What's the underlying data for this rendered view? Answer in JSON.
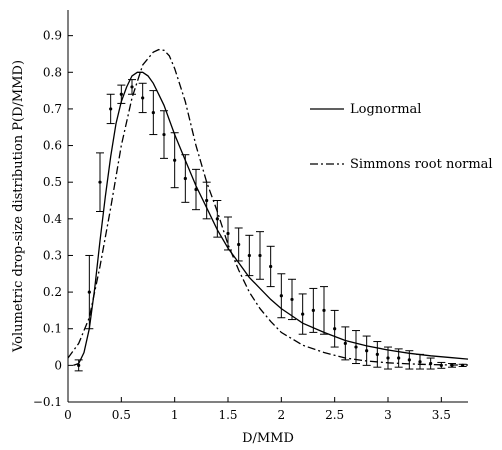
{
  "chart_data": {
    "type": "line",
    "title": "",
    "xlabel": "D/MMD",
    "ylabel": "Volumetric drop-size distribution P(D/MMD)",
    "xlim": [
      0,
      3.75
    ],
    "ylim": [
      -0.1,
      0.97
    ],
    "x_ticks": [
      0,
      0.5,
      1,
      1.5,
      2,
      2.5,
      3,
      3.5
    ],
    "x_tick_labels": [
      "0",
      "0.5",
      "1",
      "1.5",
      "2",
      "2.5",
      "3",
      "3.5"
    ],
    "y_ticks": [
      -0.1,
      0,
      0.1,
      0.2,
      0.3,
      0.4,
      0.5,
      0.6,
      0.7,
      0.8,
      0.9
    ],
    "y_tick_labels": [
      "−0.1",
      "0",
      "0.1",
      "0.2",
      "0.3",
      "0.4",
      "0.5",
      "0.6",
      "0.7",
      "0.8",
      "0.9"
    ],
    "grid": false,
    "legend_position": "right",
    "series": [
      {
        "name": "Lognormal",
        "style": "solid",
        "color": "#000000",
        "x": [
          0.05,
          0.1,
          0.15,
          0.2,
          0.25,
          0.3,
          0.35,
          0.4,
          0.45,
          0.5,
          0.55,
          0.6,
          0.65,
          0.7,
          0.75,
          0.8,
          0.85,
          0.9,
          0.95,
          1.0,
          1.1,
          1.2,
          1.3,
          1.4,
          1.5,
          1.6,
          1.7,
          1.8,
          1.9,
          2.0,
          2.1,
          2.2,
          2.4,
          2.6,
          2.8,
          3.0,
          3.2,
          3.4,
          3.6,
          3.75
        ],
        "y": [
          0.0,
          0.005,
          0.035,
          0.1,
          0.21,
          0.34,
          0.46,
          0.57,
          0.66,
          0.72,
          0.76,
          0.79,
          0.8,
          0.8,
          0.79,
          0.77,
          0.74,
          0.71,
          0.67,
          0.63,
          0.56,
          0.49,
          0.43,
          0.37,
          0.32,
          0.28,
          0.24,
          0.21,
          0.18,
          0.155,
          0.135,
          0.115,
          0.09,
          0.068,
          0.053,
          0.042,
          0.033,
          0.026,
          0.021,
          0.017
        ]
      },
      {
        "name": "Simmons root normal",
        "style": "dashdot",
        "color": "#000000",
        "x": [
          0.0,
          0.1,
          0.2,
          0.3,
          0.4,
          0.5,
          0.6,
          0.7,
          0.8,
          0.85,
          0.9,
          0.95,
          1.0,
          1.1,
          1.2,
          1.3,
          1.4,
          1.5,
          1.6,
          1.7,
          1.8,
          1.9,
          2.0,
          2.2,
          2.4,
          2.6,
          2.8,
          3.0,
          3.2,
          3.4,
          3.6,
          3.75
        ],
        "y": [
          0.02,
          0.06,
          0.13,
          0.27,
          0.43,
          0.6,
          0.73,
          0.82,
          0.855,
          0.862,
          0.86,
          0.845,
          0.81,
          0.72,
          0.6,
          0.5,
          0.42,
          0.33,
          0.26,
          0.2,
          0.155,
          0.12,
          0.09,
          0.055,
          0.035,
          0.02,
          0.012,
          0.007,
          0.004,
          0.002,
          0.001,
          0.001
        ]
      },
      {
        "name": "data",
        "style": "errorbar",
        "color": "#000000",
        "x": [
          0.1,
          0.2,
          0.3,
          0.4,
          0.5,
          0.6,
          0.7,
          0.8,
          0.9,
          1.0,
          1.1,
          1.2,
          1.3,
          1.4,
          1.5,
          1.6,
          1.7,
          1.8,
          1.9,
          2.0,
          2.1,
          2.2,
          2.3,
          2.4,
          2.5,
          2.6,
          2.7,
          2.8,
          2.9,
          3.0,
          3.1,
          3.2,
          3.3,
          3.4,
          3.5,
          3.6,
          3.7
        ],
        "y": [
          0.0,
          0.2,
          0.5,
          0.7,
          0.74,
          0.76,
          0.73,
          0.69,
          0.63,
          0.56,
          0.51,
          0.48,
          0.45,
          0.4,
          0.36,
          0.33,
          0.3,
          0.3,
          0.27,
          0.19,
          0.18,
          0.14,
          0.15,
          0.15,
          0.1,
          0.06,
          0.05,
          0.04,
          0.03,
          0.02,
          0.02,
          0.015,
          0.01,
          0.005,
          0.0,
          0.0,
          0.0
        ],
        "yerr": [
          0.015,
          0.1,
          0.08,
          0.04,
          0.025,
          0.02,
          0.04,
          0.06,
          0.065,
          0.075,
          0.065,
          0.055,
          0.05,
          0.05,
          0.045,
          0.045,
          0.055,
          0.065,
          0.055,
          0.06,
          0.055,
          0.055,
          0.06,
          0.065,
          0.05,
          0.045,
          0.045,
          0.04,
          0.035,
          0.03,
          0.025,
          0.025,
          0.02,
          0.015,
          0.008,
          0.005,
          0.003
        ]
      }
    ]
  }
}
